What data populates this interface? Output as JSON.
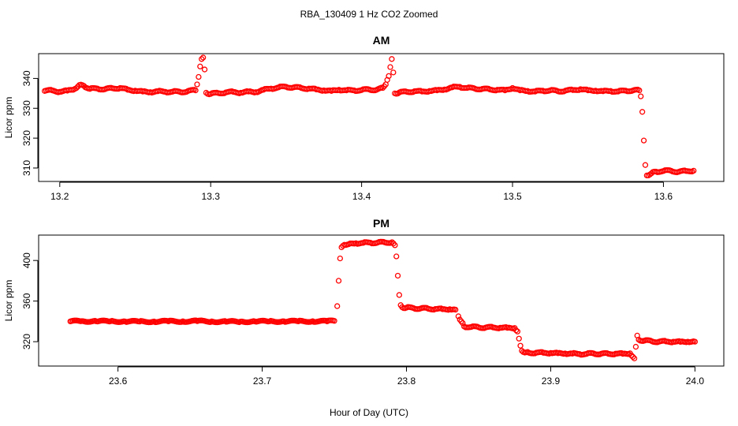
{
  "figure": {
    "title": "RBA_130409  1 Hz CO2 Zoomed",
    "xlabel": "Hour of Day (UTC)"
  },
  "chart_data": [
    {
      "type": "scatter",
      "title": "AM",
      "xlabel": "",
      "ylabel": "Licor ppm",
      "xlim": [
        13.186,
        13.64
      ],
      "ylim": [
        305.5,
        348.3
      ],
      "xticks": [
        13.2,
        13.3,
        13.4,
        13.5,
        13.6
      ],
      "xtick_labels": [
        "13.2",
        "13.3",
        "13.4",
        "13.5",
        "13.6"
      ],
      "yticks": [
        310,
        320,
        330,
        340
      ],
      "ytick_labels": [
        "310",
        "320",
        "330",
        "340"
      ],
      "marker": "open-circle",
      "color": "#ff0000",
      "series": [
        {
          "x": [
            13.19,
            13.195,
            13.2,
            13.205,
            13.21,
            13.213,
            13.216,
            13.22,
            13.225,
            13.23,
            13.235,
            13.24,
            13.245,
            13.25,
            13.255,
            13.26,
            13.265,
            13.27,
            13.275,
            13.28,
            13.285,
            13.29,
            13.291,
            13.292,
            13.293,
            13.294,
            13.295,
            13.296,
            13.297,
            13.3,
            13.305,
            13.31,
            13.315,
            13.32,
            13.325,
            13.33,
            13.335,
            13.34,
            13.345,
            13.35,
            13.355,
            13.36,
            13.365,
            13.37,
            13.375,
            13.38,
            13.385,
            13.39,
            13.395,
            13.4,
            13.405,
            13.41,
            13.414,
            13.416,
            13.417,
            13.418,
            13.419,
            13.42,
            13.421,
            13.422,
            13.425,
            13.43,
            13.435,
            13.44,
            13.445,
            13.45,
            13.455,
            13.46,
            13.465,
            13.47,
            13.475,
            13.48,
            13.485,
            13.49,
            13.495,
            13.5,
            13.505,
            13.51,
            13.515,
            13.52,
            13.525,
            13.53,
            13.535,
            13.54,
            13.545,
            13.55,
            13.555,
            13.56,
            13.565,
            13.57,
            13.575,
            13.58,
            13.584,
            13.585,
            13.586,
            13.587,
            13.588,
            13.589,
            13.592,
            13.595,
            13.6,
            13.605,
            13.61,
            13.615,
            13.62
          ],
          "y": [
            335.8,
            336.0,
            335.5,
            335.9,
            336.5,
            337.8,
            337.5,
            336.5,
            336.6,
            336.4,
            336.7,
            336.8,
            336.2,
            335.9,
            335.6,
            335.4,
            335.7,
            335.5,
            335.6,
            335.4,
            335.8,
            336.0,
            338.0,
            340.5,
            344.0,
            346.5,
            347.0,
            343.0,
            335.2,
            334.8,
            335.1,
            335.3,
            335.5,
            335.2,
            335.6,
            335.4,
            336.2,
            336.6,
            337.0,
            337.2,
            337.0,
            336.8,
            336.6,
            336.3,
            336.0,
            335.8,
            336.2,
            336.0,
            336.0,
            336.1,
            336.3,
            336.2,
            336.8,
            338.0,
            339.5,
            340.8,
            343.8,
            346.5,
            342.0,
            335.0,
            335.3,
            335.5,
            335.7,
            335.6,
            335.8,
            336.0,
            336.3,
            337.0,
            337.2,
            336.8,
            336.6,
            336.5,
            336.3,
            336.2,
            336.0,
            336.8,
            336.0,
            335.8,
            335.6,
            335.9,
            336.0,
            335.7,
            335.9,
            336.1,
            336.4,
            336.0,
            335.9,
            335.7,
            335.8,
            335.6,
            335.9,
            336.0,
            336.0,
            334.0,
            328.8,
            319.2,
            311.0,
            307.5,
            308.2,
            308.8,
            309.0,
            309.1,
            308.7,
            309.0,
            309.1
          ]
        }
      ]
    },
    {
      "type": "scatter",
      "title": "PM",
      "xlabel": "Hour of Day (UTC)",
      "ylabel": "Licor ppm",
      "xlim": [
        23.545,
        24.02
      ],
      "ylim": [
        296.0,
        425.0
      ],
      "xticks": [
        23.6,
        23.7,
        23.8,
        23.9,
        24.0
      ],
      "xtick_labels": [
        "23.6",
        "23.7",
        "23.8",
        "23.9",
        "24.0"
      ],
      "yticks": [
        320,
        360,
        400
      ],
      "ytick_labels": [
        "320",
        "360",
        "400"
      ],
      "marker": "open-circle",
      "color": "#ff0000",
      "series": [
        {
          "x": [
            23.567,
            23.575,
            23.585,
            23.595,
            23.605,
            23.615,
            23.625,
            23.635,
            23.645,
            23.655,
            23.665,
            23.675,
            23.685,
            23.695,
            23.705,
            23.715,
            23.725,
            23.735,
            23.745,
            23.75,
            23.752,
            23.753,
            23.754,
            23.755,
            23.757,
            23.76,
            23.765,
            23.77,
            23.775,
            23.78,
            23.785,
            23.79,
            23.792,
            23.793,
            23.794,
            23.795,
            23.796,
            23.797,
            23.8,
            23.805,
            23.81,
            23.815,
            23.82,
            23.825,
            23.83,
            23.834,
            23.836,
            23.838,
            23.84,
            23.845,
            23.85,
            23.855,
            23.86,
            23.865,
            23.87,
            23.875,
            23.877,
            23.878,
            23.879,
            23.88,
            23.883,
            23.885,
            23.89,
            23.895,
            23.9,
            23.905,
            23.91,
            23.915,
            23.92,
            23.925,
            23.93,
            23.935,
            23.94,
            23.945,
            23.95,
            23.955,
            23.958,
            23.959,
            23.96,
            23.961,
            23.965,
            23.97,
            23.975,
            23.98,
            23.985,
            23.99,
            23.995,
            24.0
          ],
          "y": [
            340.0,
            340.3,
            340.0,
            340.2,
            339.9,
            339.8,
            339.9,
            340.0,
            340.1,
            340.2,
            340.0,
            339.6,
            339.8,
            339.9,
            340.0,
            340.1,
            340.0,
            340.2,
            340.0,
            340.5,
            355.0,
            380.0,
            402.0,
            413.0,
            415.5,
            416.0,
            417.0,
            417.3,
            417.5,
            417.6,
            417.8,
            418.0,
            415.0,
            404.0,
            385.0,
            366.0,
            356.0,
            354.0,
            353.5,
            353.0,
            352.8,
            352.5,
            352.2,
            352.0,
            352.0,
            351.5,
            345.0,
            340.0,
            335.0,
            334.5,
            334.2,
            334.0,
            334.0,
            333.8,
            333.6,
            333.5,
            330.0,
            323.0,
            316.0,
            311.0,
            309.5,
            309.0,
            309.2,
            309.0,
            308.9,
            308.6,
            308.4,
            308.2,
            307.8,
            308.0,
            308.3,
            308.1,
            308.0,
            308.2,
            308.0,
            308.5,
            303.5,
            315.0,
            326.0,
            322.0,
            321.0,
            320.5,
            320.0,
            320.2,
            320.0,
            319.8,
            320.0,
            320.0
          ]
        }
      ]
    }
  ]
}
